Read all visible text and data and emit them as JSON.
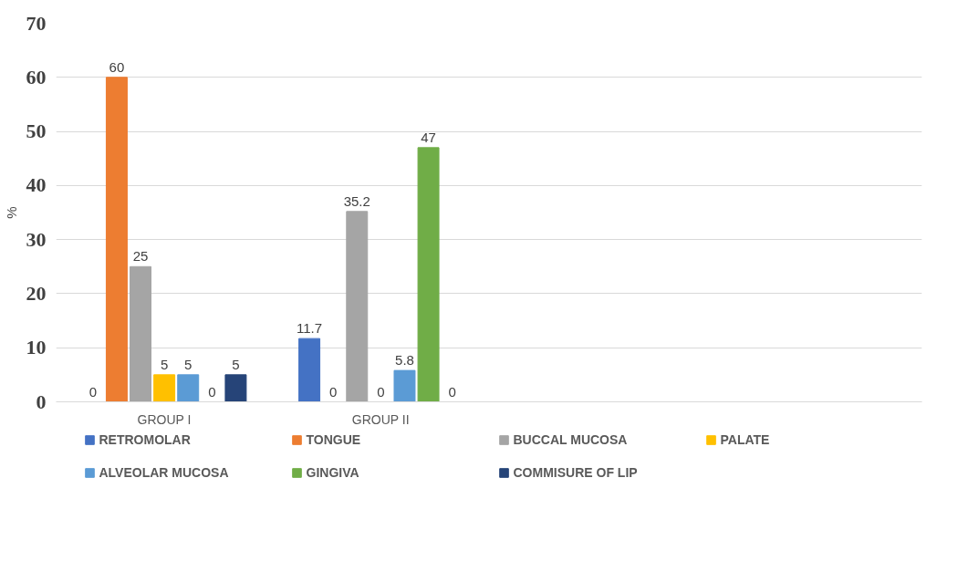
{
  "chart_data": {
    "type": "bar",
    "ylabel": "%",
    "categories": [
      "GROUP I",
      "GROUP II",
      null,
      null
    ],
    "series": [
      {
        "name": "RETROMOLAR",
        "color": "#4472c4",
        "values": [
          0,
          11.7,
          null,
          null
        ]
      },
      {
        "name": "TONGUE",
        "color": "#ed7d31",
        "values": [
          60,
          0,
          null,
          null
        ]
      },
      {
        "name": "BUCCAL MUCOSA",
        "color": "#a5a5a5",
        "values": [
          25,
          35.2,
          null,
          null
        ]
      },
      {
        "name": "PALATE",
        "color": "#ffc000",
        "values": [
          5,
          0,
          null,
          null
        ]
      },
      {
        "name": "ALVEOLAR MUCOSA",
        "color": "#5b9bd5",
        "values": [
          5,
          5.8,
          null,
          null
        ]
      },
      {
        "name": "GINGIVA",
        "color": "#70ad47",
        "values": [
          0,
          47,
          null,
          null
        ]
      },
      {
        "name": "COMMISURE OF LIP",
        "color": "#264478",
        "values": [
          5,
          0,
          null,
          null
        ]
      }
    ],
    "ylim": [
      0,
      70
    ],
    "yticks": [
      0,
      10,
      20,
      30,
      40,
      50,
      60,
      70
    ],
    "grid": "y",
    "legend": "bottom",
    "data_labels": true
  }
}
